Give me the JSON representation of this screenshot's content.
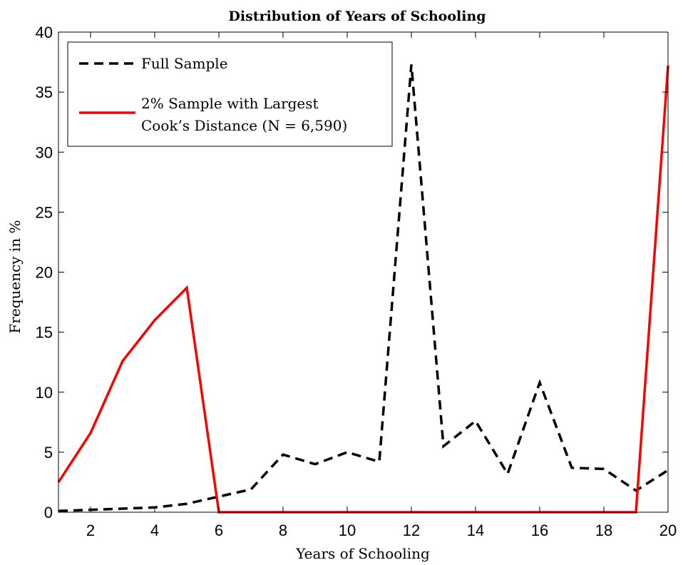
{
  "chart_data": {
    "type": "line",
    "title": "Distribution of Years of Schooling",
    "xlabel": "Years of Schooling",
    "ylabel": "Frequency in %",
    "xlim": [
      1,
      20
    ],
    "ylim": [
      0,
      40
    ],
    "x_ticks": [
      2,
      4,
      6,
      8,
      10,
      12,
      14,
      16,
      18,
      20
    ],
    "y_ticks": [
      0,
      5,
      10,
      15,
      20,
      25,
      30,
      35,
      40
    ],
    "grid": false,
    "legend_position": "top-left",
    "x": [
      1,
      2,
      3,
      4,
      5,
      6,
      7,
      8,
      9,
      10,
      11,
      12,
      13,
      14,
      15,
      16,
      17,
      18,
      19,
      20
    ],
    "series": [
      {
        "name": "Full Sample",
        "style": "dashed",
        "color": "#000000",
        "values": [
          0.1,
          0.2,
          0.3,
          0.4,
          0.7,
          1.3,
          1.9,
          4.8,
          4.0,
          5.0,
          4.2,
          37.3,
          5.5,
          7.6,
          3.2,
          10.8,
          3.7,
          3.6,
          1.8,
          3.5
        ]
      },
      {
        "name": "2% Sample with Largest Cook’s Distance (N = 6,590)",
        "legend_lines": [
          "2% Sample with Largest",
          "Cook’s Distance (N = 6,590)"
        ],
        "style": "solid",
        "color": "#ff0000",
        "values": [
          2.5,
          6.6,
          12.6,
          16.0,
          18.7,
          0,
          0,
          0,
          0,
          0,
          0,
          0,
          0,
          0,
          0,
          0,
          0,
          0,
          0,
          37.2
        ]
      }
    ]
  }
}
